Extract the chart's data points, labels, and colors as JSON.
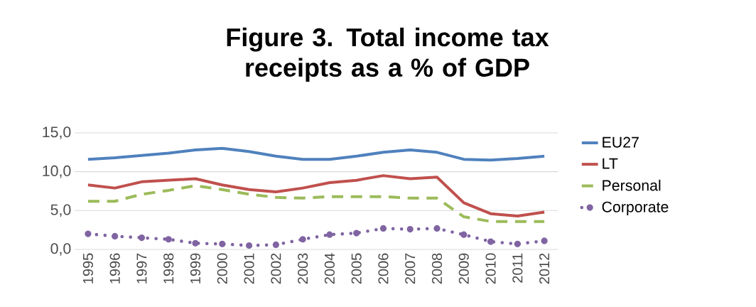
{
  "chart_data": {
    "type": "line",
    "title": "Figure 3. Total income tax receipts as a % of GDP",
    "categories": [
      "1995",
      "1996",
      "1997",
      "1998",
      "1999",
      "2000",
      "2001",
      "2002",
      "2003",
      "2004",
      "2005",
      "2006",
      "2007",
      "2008",
      "2009",
      "2010",
      "2011",
      "2012"
    ],
    "series": [
      {
        "name": "EU27",
        "color": "#4f81bd",
        "line_style": "solid",
        "values": [
          11.6,
          11.8,
          12.1,
          12.4,
          12.8,
          13.0,
          12.6,
          12.0,
          11.6,
          11.6,
          12.0,
          12.5,
          12.8,
          12.5,
          11.6,
          11.5,
          11.7,
          12.0
        ]
      },
      {
        "name": "LT",
        "color": "#c0504d",
        "line_style": "solid",
        "values": [
          8.3,
          7.9,
          8.7,
          8.9,
          9.1,
          8.3,
          7.7,
          7.4,
          7.9,
          8.6,
          8.9,
          9.5,
          9.1,
          9.3,
          6.0,
          4.6,
          4.3,
          4.8
        ]
      },
      {
        "name": "Personal",
        "color": "#9bbb59",
        "line_style": "dashed",
        "values": [
          6.2,
          6.2,
          7.1,
          7.6,
          8.2,
          7.7,
          7.1,
          6.7,
          6.6,
          6.8,
          6.8,
          6.8,
          6.6,
          6.6,
          4.2,
          3.6,
          3.6,
          3.6
        ]
      },
      {
        "name": "Corporate",
        "color": "#8064a2",
        "line_style": "dotted",
        "values": [
          2.0,
          1.7,
          1.5,
          1.3,
          0.8,
          0.7,
          0.5,
          0.6,
          1.3,
          1.9,
          2.1,
          2.7,
          2.6,
          2.7,
          1.9,
          1.0,
          0.7,
          1.1
        ]
      }
    ],
    "ylim": [
      0,
      15
    ],
    "yticks": [
      {
        "value": 0,
        "label": "0,0"
      },
      {
        "value": 5,
        "label": "5,0"
      },
      {
        "value": 10,
        "label": "10,0"
      },
      {
        "value": 15,
        "label": "15,0"
      }
    ],
    "grid": "y",
    "legend": "right",
    "marker": "none"
  }
}
